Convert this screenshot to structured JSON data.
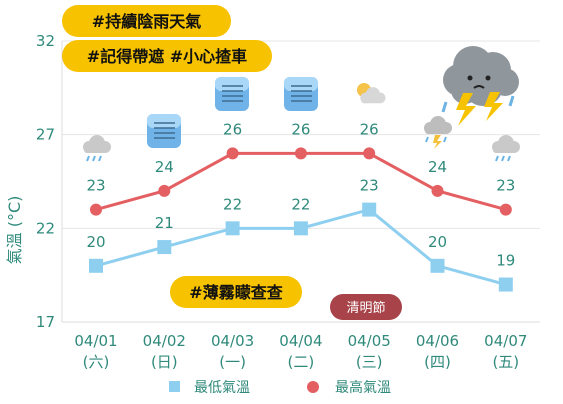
{
  "chart_data": {
    "type": "line",
    "categories": [
      "04/01",
      "04/02",
      "04/03",
      "04/04",
      "04/05",
      "04/06",
      "04/07"
    ],
    "weekdays": [
      "(六)",
      "(日)",
      "(一)",
      "(二)",
      "(三)",
      "(四)",
      "(五)"
    ],
    "series": [
      {
        "name": "最低氣溫",
        "marker": "square",
        "color": "#8ecff0",
        "values": [
          20,
          21,
          22,
          22,
          23,
          20,
          19
        ]
      },
      {
        "name": "最高氣溫",
        "marker": "circle",
        "color": "#e45f62",
        "values": [
          23,
          24,
          26,
          26,
          26,
          24,
          23
        ]
      }
    ],
    "ylabel": "氣溫 (°C)",
    "ylim": [
      17,
      32
    ],
    "yticks": [
      17,
      22,
      27,
      32
    ],
    "grid": true,
    "legend": "bottom",
    "weather_icons": [
      "rain-cloud-icon",
      "cloudy-icon",
      "cloudy-icon",
      "cloudy-icon",
      "sun-cloud-icon",
      "thunder-rain-icon",
      "rain-cloud-icon"
    ],
    "annotations": {
      "badge1": "#持續陰雨天氣",
      "badge2": "#記得帶遮  #小心揸車",
      "badge3": "#薄霧矇查查",
      "holiday": "清明節"
    },
    "colors": {
      "accent": "#f7c300",
      "label_text": "#2f8a7b",
      "holiday_bg": "#a84449"
    }
  }
}
